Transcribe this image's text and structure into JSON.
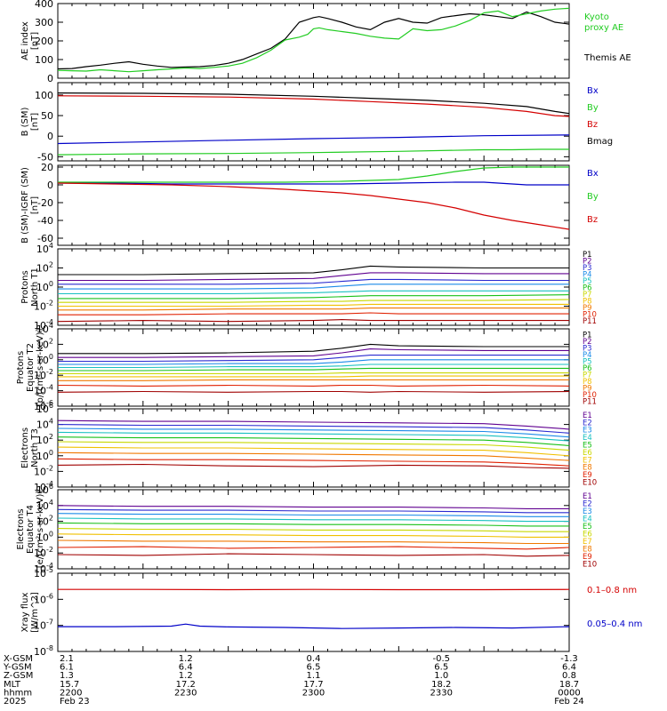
{
  "colors": {
    "black": "#000000",
    "red": "#d40000",
    "green": "#22cc22",
    "blue": "#0000c8",
    "ch": [
      "#000000",
      "#600090",
      "#2a2ad0",
      "#1a8ae8",
      "#18c0c0",
      "#18c018",
      "#c8d800",
      "#f0c000",
      "#f07800",
      "#e02000",
      "#a00000"
    ]
  },
  "chart_data": [
    {
      "id": "ae",
      "type": "line",
      "ylabel_lines": [
        "AE index",
        "[nT]"
      ],
      "ylim": [
        0,
        400
      ],
      "yticks": [
        "0",
        "100",
        "200",
        "300",
        "400"
      ],
      "series": [
        {
          "name": "Themis AE",
          "color": "black",
          "x": [
            0,
            5,
            10,
            15,
            20,
            25,
            30,
            35,
            40,
            45,
            50,
            55,
            60,
            65,
            70,
            75,
            80,
            85,
            88,
            90,
            92,
            95,
            100,
            105,
            110,
            115,
            120,
            125,
            130,
            135,
            140,
            145,
            150,
            155,
            160,
            165,
            170,
            175,
            180
          ],
          "y": [
            50,
            52,
            62,
            70,
            80,
            88,
            75,
            65,
            58,
            60,
            62,
            68,
            80,
            100,
            130,
            160,
            210,
            300,
            315,
            325,
            330,
            320,
            300,
            275,
            260,
            300,
            320,
            300,
            295,
            325,
            335,
            345,
            340,
            330,
            320,
            355,
            330,
            300,
            290
          ]
        },
        {
          "name": "Kyoto proxy AE",
          "color": "green",
          "x": [
            0,
            5,
            10,
            15,
            20,
            25,
            30,
            35,
            40,
            45,
            50,
            55,
            60,
            65,
            70,
            75,
            80,
            85,
            88,
            90,
            92,
            95,
            100,
            105,
            110,
            115,
            120,
            125,
            130,
            135,
            140,
            145,
            150,
            155,
            160,
            165,
            170,
            175,
            180
          ],
          "y": [
            42,
            40,
            38,
            45,
            40,
            35,
            40,
            45,
            50,
            55,
            52,
            58,
            65,
            80,
            110,
            150,
            205,
            220,
            235,
            265,
            270,
            260,
            250,
            240,
            225,
            215,
            210,
            265,
            255,
            260,
            280,
            310,
            350,
            360,
            330,
            345,
            360,
            370,
            375
          ]
        }
      ]
    },
    {
      "id": "bsm",
      "type": "line",
      "ylabel_lines": [
        "B (SM)",
        "[nT]"
      ],
      "ylim": [
        -60,
        130
      ],
      "yticks": [
        "-50",
        "0",
        "50",
        "100"
      ],
      "series": [
        {
          "name": "Bx",
          "color": "blue",
          "x": [
            0,
            30,
            60,
            90,
            120,
            150,
            180
          ],
          "y": [
            -18,
            -14,
            -10,
            -6,
            -3,
            1,
            3
          ]
        },
        {
          "name": "By",
          "color": "green",
          "x": [
            0,
            30,
            60,
            90,
            120,
            150,
            160,
            170,
            180
          ],
          "y": [
            -45,
            -43,
            -42,
            -40,
            -37,
            -33,
            -33,
            -32,
            -32
          ]
        },
        {
          "name": "Bz",
          "color": "red",
          "x": [
            0,
            30,
            60,
            90,
            110,
            130,
            150,
            165,
            175,
            180
          ],
          "y": [
            98,
            97,
            95,
            90,
            84,
            78,
            70,
            60,
            50,
            48
          ]
        },
        {
          "name": "Bmag",
          "color": "black",
          "x": [
            0,
            30,
            60,
            90,
            110,
            130,
            150,
            165,
            175,
            180
          ],
          "y": [
            105,
            104,
            102,
            97,
            92,
            87,
            80,
            72,
            60,
            55
          ]
        }
      ]
    },
    {
      "id": "bigrf",
      "type": "line",
      "ylabel_lines": [
        "B (SM)-IGRF (SM)",
        "[nT]"
      ],
      "ylim": [
        -68,
        22
      ],
      "yticks": [
        "20",
        "0",
        "-20",
        "-40",
        "-60"
      ],
      "series": [
        {
          "name": "Bx",
          "color": "blue",
          "x": [
            0,
            20,
            40,
            60,
            80,
            100,
            120,
            140,
            150,
            160,
            165,
            170,
            180
          ],
          "y": [
            2,
            2,
            1,
            1,
            1,
            1,
            2,
            3,
            3,
            1,
            0,
            0,
            0
          ]
        },
        {
          "name": "By",
          "color": "green",
          "x": [
            0,
            20,
            40,
            60,
            80,
            100,
            110,
            120,
            130,
            140,
            150,
            160,
            170,
            180
          ],
          "y": [
            3,
            3,
            3,
            3,
            3,
            4,
            5,
            6,
            10,
            15,
            19,
            20,
            20,
            20
          ]
        },
        {
          "name": "Bz",
          "color": "red",
          "x": [
            0,
            20,
            40,
            60,
            80,
            100,
            110,
            120,
            130,
            140,
            150,
            160,
            170,
            180
          ],
          "y": [
            2,
            1,
            0,
            -2,
            -5,
            -9,
            -12,
            -16,
            -20,
            -26,
            -34,
            -40,
            -45,
            -50
          ]
        }
      ]
    },
    {
      "id": "pn",
      "type": "line",
      "log": true,
      "ylabel_lines": [
        "Protons",
        "North T1"
      ],
      "ylim_exp": [
        -4,
        4
      ],
      "yticks": [
        "10-4",
        "10-2",
        "100",
        "102",
        "104"
      ],
      "channels": [
        "P1",
        "P2",
        "P3",
        "P4",
        "P5",
        "P6",
        "P7",
        "P8",
        "P9",
        "P10",
        "P11"
      ],
      "x": [
        0,
        30,
        60,
        90,
        100,
        110,
        120,
        150,
        180
      ],
      "levels": [
        [
          1.3,
          1.3,
          1.4,
          1.5,
          1.8,
          2.2,
          2.1,
          2.0,
          2.0
        ],
        [
          0.7,
          0.7,
          0.8,
          0.9,
          1.2,
          1.5,
          1.5,
          1.4,
          1.4
        ],
        [
          0.3,
          0.3,
          0.3,
          0.4,
          0.6,
          0.8,
          0.8,
          0.7,
          0.7
        ],
        [
          -0.2,
          -0.2,
          -0.2,
          -0.1,
          0.1,
          0.3,
          0.3,
          0.3,
          0.3
        ],
        [
          -0.7,
          -0.7,
          -0.7,
          -0.6,
          -0.5,
          -0.4,
          -0.4,
          -0.4,
          -0.4
        ],
        [
          -1.2,
          -1.2,
          -1.2,
          -1.1,
          -1.0,
          -0.9,
          -0.9,
          -0.9,
          -0.8
        ],
        [
          -1.6,
          -1.6,
          -1.6,
          -1.5,
          -1.5,
          -1.4,
          -1.4,
          -1.4,
          -1.3
        ],
        [
          -2.0,
          -2.0,
          -2.0,
          -1.9,
          -1.9,
          -1.8,
          -1.8,
          -1.8,
          -1.8
        ],
        [
          -2.4,
          -2.4,
          -2.3,
          -2.3,
          -2.3,
          -2.2,
          -2.2,
          -2.2,
          -2.2
        ],
        [
          -2.9,
          -2.9,
          -2.8,
          -2.8,
          -2.8,
          -2.7,
          -2.8,
          -2.8,
          -2.8
        ],
        [
          -3.6,
          -3.5,
          -3.6,
          -3.5,
          -3.4,
          -3.5,
          -3.5,
          -3.5,
          -3.5
        ]
      ]
    },
    {
      "id": "pe",
      "type": "line",
      "log": true,
      "ylabel_lines": [
        "Protons",
        "Equator T2",
        "[p/(cm²-s-sr-keV)]"
      ],
      "ylim_exp": [
        -6,
        4
      ],
      "yticks": [
        "10-6",
        "10-4",
        "10-2",
        "100",
        "102",
        "104"
      ],
      "channels": [
        "P1",
        "P2",
        "P3",
        "P4",
        "P5",
        "P6",
        "P7",
        "P8",
        "P9",
        "P10",
        "P11"
      ],
      "x": [
        0,
        30,
        60,
        90,
        100,
        110,
        120,
        150,
        180
      ],
      "levels": [
        [
          0.8,
          0.8,
          0.9,
          1.1,
          1.5,
          2.0,
          1.8,
          1.7,
          1.7
        ],
        [
          0.3,
          0.3,
          0.4,
          0.5,
          0.9,
          1.4,
          1.3,
          1.2,
          1.2
        ],
        [
          -0.2,
          -0.2,
          -0.1,
          0.0,
          0.3,
          0.6,
          0.6,
          0.6,
          0.6
        ],
        [
          -0.6,
          -0.6,
          -0.5,
          -0.5,
          -0.3,
          0.0,
          0.0,
          0.0,
          0.0
        ],
        [
          -1.0,
          -1.0,
          -0.9,
          -0.9,
          -0.8,
          -0.6,
          -0.6,
          -0.6,
          -0.6
        ],
        [
          -1.4,
          -1.4,
          -1.3,
          -1.3,
          -1.2,
          -1.1,
          -1.1,
          -1.1,
          -1.1
        ],
        [
          -1.8,
          -1.8,
          -1.8,
          -1.8,
          -1.7,
          -1.7,
          -1.7,
          -1.7,
          -1.7
        ],
        [
          -2.2,
          -2.2,
          -2.2,
          -2.2,
          -2.2,
          -2.1,
          -2.1,
          -2.1,
          -2.1
        ],
        [
          -2.7,
          -2.7,
          -2.6,
          -2.6,
          -2.6,
          -2.6,
          -2.6,
          -2.6,
          -2.6
        ],
        [
          -3.3,
          -3.4,
          -3.3,
          -3.4,
          -3.3,
          -3.3,
          -3.4,
          -3.3,
          -3.4
        ],
        [
          -4.2,
          -4.1,
          -4.2,
          -4.1,
          -4.1,
          -4.2,
          -4.1,
          -4.2,
          -4.1
        ]
      ]
    },
    {
      "id": "en",
      "type": "line",
      "log": true,
      "ylabel_lines": [
        "Electrons",
        "North T3"
      ],
      "ylim_exp": [
        -4,
        6
      ],
      "yticks": [
        "10-4",
        "10-2",
        "100",
        "102",
        "104",
        "106"
      ],
      "channels": [
        "E1",
        "E2",
        "E3",
        "E4",
        "E5",
        "E6",
        "E7",
        "E8",
        "E9",
        "E10"
      ],
      "x": [
        0,
        30,
        60,
        90,
        120,
        150,
        165,
        180
      ],
      "levels": [
        [
          4.5,
          4.4,
          4.4,
          4.3,
          4.2,
          4.1,
          3.8,
          3.4
        ],
        [
          4.0,
          3.9,
          3.9,
          3.8,
          3.7,
          3.6,
          3.3,
          2.9
        ],
        [
          3.5,
          3.4,
          3.4,
          3.3,
          3.2,
          3.1,
          2.8,
          2.4
        ],
        [
          3.0,
          2.9,
          2.9,
          2.8,
          2.7,
          2.6,
          2.3,
          1.9
        ],
        [
          2.4,
          2.3,
          2.3,
          2.2,
          2.1,
          2.0,
          1.7,
          1.3
        ],
        [
          1.8,
          1.7,
          1.7,
          1.6,
          1.5,
          1.4,
          1.1,
          0.7
        ],
        [
          1.1,
          1.0,
          1.0,
          0.9,
          0.8,
          0.7,
          0.4,
          0.0
        ],
        [
          0.4,
          0.3,
          0.3,
          0.2,
          0.1,
          0.0,
          -0.3,
          -0.6
        ],
        [
          -0.4,
          -0.5,
          -0.5,
          -0.6,
          -0.7,
          -0.8,
          -1.0,
          -1.3
        ],
        [
          -1.2,
          -1.1,
          -1.3,
          -1.4,
          -1.2,
          -1.3,
          -1.5,
          -1.6
        ]
      ]
    },
    {
      "id": "ee",
      "type": "line",
      "log": true,
      "ylabel_lines": [
        "Electrons",
        "Equator T4",
        "[e/(cm²-s-sr-keV)]"
      ],
      "ylim_exp": [
        -4,
        6
      ],
      "yticks": [
        "10-4",
        "10-2",
        "100",
        "102",
        "104",
        "106"
      ],
      "channels": [
        "E1",
        "E2",
        "E3",
        "E4",
        "E5",
        "E6",
        "E7",
        "E8",
        "E9",
        "E10"
      ],
      "x": [
        0,
        30,
        60,
        90,
        120,
        150,
        165,
        180
      ],
      "levels": [
        [
          4.0,
          3.9,
          3.9,
          3.8,
          3.8,
          3.7,
          3.6,
          3.6
        ],
        [
          3.5,
          3.4,
          3.4,
          3.3,
          3.3,
          3.2,
          3.1,
          3.1
        ],
        [
          3.0,
          2.9,
          2.9,
          2.8,
          2.8,
          2.7,
          2.6,
          2.6
        ],
        [
          2.4,
          2.3,
          2.3,
          2.2,
          2.2,
          2.1,
          2.0,
          2.0
        ],
        [
          1.8,
          1.7,
          1.7,
          1.6,
          1.6,
          1.5,
          1.4,
          1.4
        ],
        [
          1.1,
          1.0,
          1.0,
          0.9,
          0.9,
          0.8,
          0.7,
          0.7
        ],
        [
          0.4,
          0.3,
          0.3,
          0.2,
          0.2,
          0.1,
          0.0,
          0.0
        ],
        [
          -0.4,
          -0.5,
          -0.5,
          -0.6,
          -0.6,
          -0.7,
          -0.8,
          -0.8
        ],
        [
          -1.3,
          -1.2,
          -1.4,
          -1.3,
          -1.2,
          -1.4,
          -1.5,
          -1.3
        ],
        [
          -2.2,
          -2.3,
          -2.1,
          -2.2,
          -2.3,
          -2.2,
          -2.4,
          -2.3
        ]
      ]
    },
    {
      "id": "xray",
      "type": "line",
      "log": true,
      "ylabel_lines": [
        "Xray flux",
        "[W/m^2]"
      ],
      "ylim_exp": [
        -8,
        -5
      ],
      "yticks": [
        "10-8",
        "10-7",
        "10-6",
        "10-5"
      ],
      "series": [
        {
          "name": "0.1-0.8 nm",
          "color": "red",
          "x": [
            0,
            30,
            60,
            90,
            120,
            150,
            180
          ],
          "y": [
            -5.62,
            -5.62,
            -5.63,
            -5.62,
            -5.63,
            -5.63,
            -5.62
          ]
        },
        {
          "name": "0.05-0.4 nm",
          "color": "blue",
          "x": [
            0,
            20,
            40,
            45,
            50,
            60,
            80,
            100,
            120,
            140,
            160,
            180
          ],
          "y": [
            -7.05,
            -7.05,
            -7.03,
            -6.95,
            -7.03,
            -7.06,
            -7.08,
            -7.12,
            -7.1,
            -7.08,
            -7.1,
            -7.05
          ]
        }
      ]
    }
  ],
  "legends": {
    "ae": [
      {
        "text": "Kyoto",
        "color": "green"
      },
      {
        "text": "proxy AE",
        "color": "green"
      },
      {
        "text": "Themis AE",
        "color": "black"
      }
    ],
    "bsm": [
      {
        "text": "Bx",
        "color": "blue"
      },
      {
        "text": "By",
        "color": "green"
      },
      {
        "text": "Bz",
        "color": "red"
      },
      {
        "text": "Bmag",
        "color": "black"
      }
    ],
    "bigrf": [
      {
        "text": "Bx",
        "color": "blue"
      },
      {
        "text": "By",
        "color": "green"
      },
      {
        "text": "Bz",
        "color": "red"
      }
    ],
    "xray": [
      {
        "text": "0.1–0.8 nm",
        "color": "red"
      },
      {
        "text": "0.05–0.4 nm",
        "color": "blue"
      }
    ]
  },
  "ephemeris": {
    "row_labels": [
      "X-GSM",
      "Y-GSM",
      "Z-GSM",
      "MLT",
      "hhmm",
      "2025"
    ],
    "columns": [
      [
        "2.1",
        "6.1",
        "1.3",
        "15.7",
        "2200",
        "Feb 23"
      ],
      [
        "1.2",
        "6.4",
        "1.2",
        "17.2",
        "2230",
        ""
      ],
      [
        "0.4",
        "6.5",
        "1.1",
        "17.7",
        "2300",
        ""
      ],
      [
        "-0.5",
        "6.5",
        "1.0",
        "18.2",
        "2330",
        ""
      ],
      [
        "-1.3",
        "6.4",
        "0.8",
        "18.7",
        "0000",
        "Feb 24"
      ]
    ]
  }
}
